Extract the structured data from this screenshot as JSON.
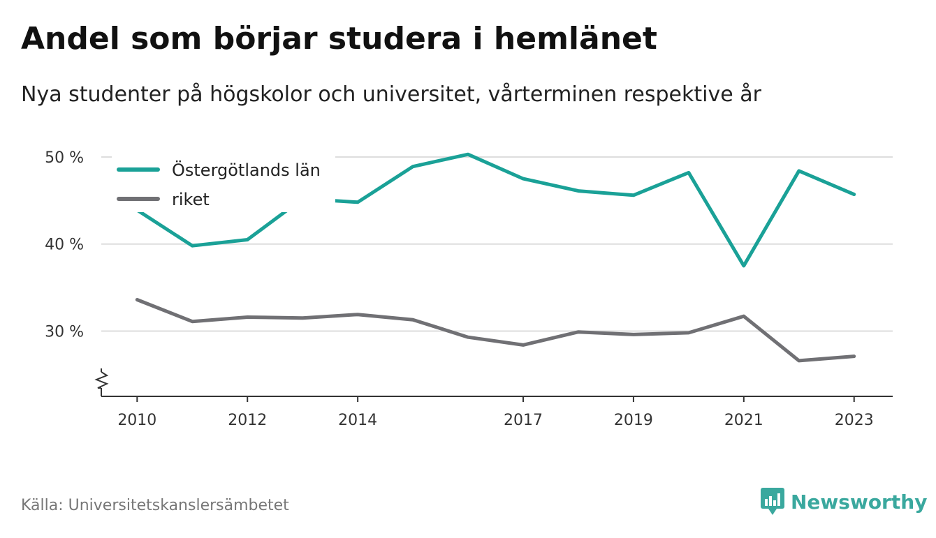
{
  "title": "Andel som börjar studera i hemlänet",
  "subtitle": "Nya studenter på högskolor och universitet, vårterminen respektive år",
  "source": "Källa: Universitetskanslersämbetet",
  "brand": "Newsworthy",
  "colors": {
    "primary": "#1aa197",
    "secondary": "#707074",
    "grid": "#dddddd",
    "axis": "#333333",
    "brand": "#3aa89e"
  },
  "chart_data": {
    "type": "line",
    "x": [
      2010,
      2011,
      2012,
      2013,
      2014,
      2015,
      2016,
      2017,
      2018,
      2019,
      2020,
      2021,
      2022,
      2023
    ],
    "x_tick_labels": [
      "2010",
      "2012",
      "2014",
      "2017",
      "2019",
      "2021",
      "2023"
    ],
    "y_tick_labels": [
      "30 %",
      "40 %",
      "50 %"
    ],
    "y_ticks": [
      30,
      40,
      50
    ],
    "ylim": [
      22.5,
      52
    ],
    "y_axis_break": true,
    "grid": true,
    "legend_position": "top-left",
    "series": [
      {
        "name": "Östergötlands län",
        "color": "#1aa197",
        "values": [
          43.9,
          39.8,
          40.5,
          45.2,
          44.8,
          48.9,
          50.3,
          47.5,
          46.1,
          45.6,
          48.2,
          37.5,
          48.4,
          45.7
        ]
      },
      {
        "name": "riket",
        "color": "#707074",
        "values": [
          33.6,
          31.1,
          31.6,
          31.5,
          31.9,
          31.3,
          29.3,
          28.4,
          29.9,
          29.6,
          29.8,
          31.7,
          26.6,
          27.1
        ]
      }
    ]
  }
}
